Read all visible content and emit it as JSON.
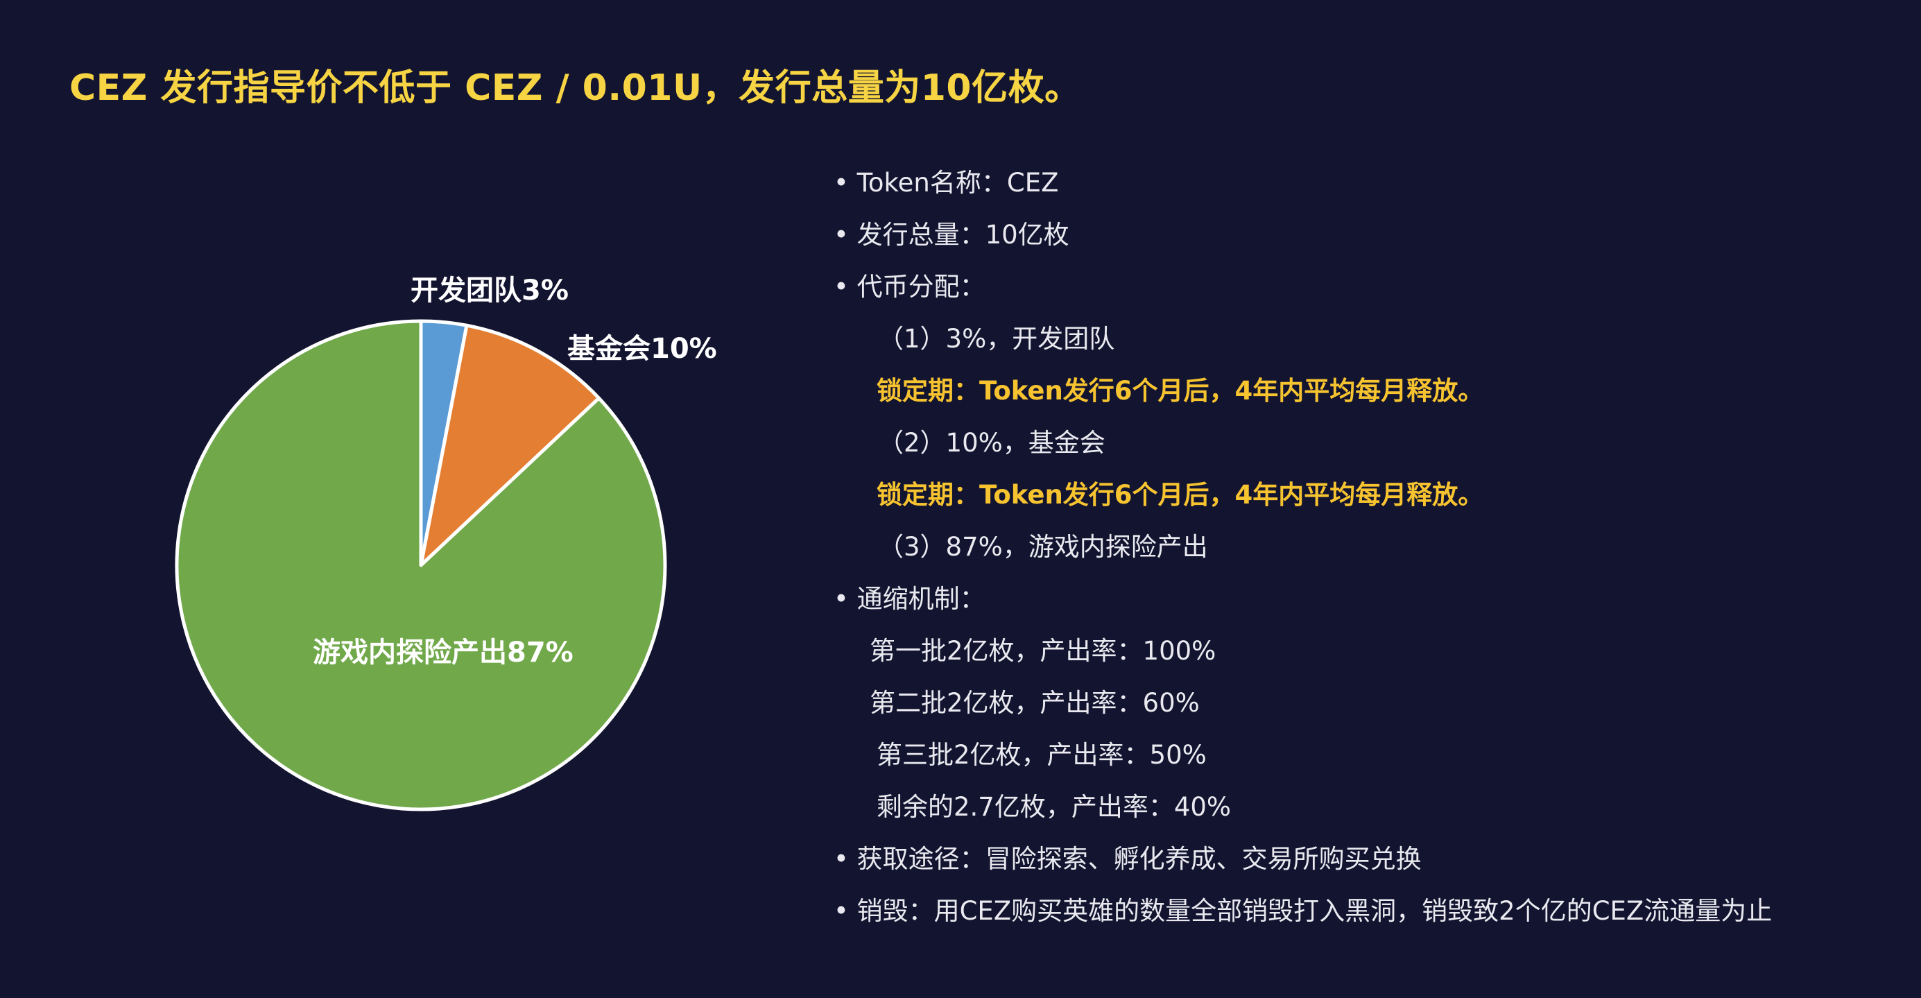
{
  "title": "CEZ 发行指导价不低于 CEZ / 0.01U，发行总量为10亿枚。",
  "colors": {
    "background": "#131430",
    "title": "#f7d443",
    "highlight": "#f7c430",
    "slice_team": "#5b9bd5",
    "slice_foundation": "#e47e32",
    "slice_game": "#70a84a"
  },
  "chart_data": {
    "type": "pie",
    "slices": [
      {
        "label": "开发团队3%",
        "value": 3,
        "color": "#5b9bd5"
      },
      {
        "label": "基金会10%",
        "value": 10,
        "color": "#e47e32"
      },
      {
        "label": "游戏内探险产出87%",
        "value": 87,
        "color": "#70a84a"
      }
    ],
    "start_angle_deg": 0,
    "direction": "clockwise",
    "legend": "none"
  },
  "info": {
    "token_name": "Token名称：CEZ",
    "total_supply": "发行总量：10亿枚",
    "distribution_title": "代币分配：",
    "dist_1": "（1）3%，开发团队",
    "lock_1": "锁定期：Token发行6个月后，4年内平均每月释放。",
    "dist_2": "（2）10%，基金会",
    "lock_2": "锁定期：Token发行6个月后，4年内平均每月释放。",
    "dist_3": "（3）87%，游戏内探险产出",
    "deflation_title": "通缩机制：",
    "batch_1": "第一批2亿枚，产出率：100%",
    "batch_2": "第二批2亿枚，产出率：60%",
    "batch_3": "第三批2亿枚，产出率：50%",
    "batch_rest": "剩余的2.7亿枚，产出率：40%",
    "acquire": "获取途径：冒险探索、孵化养成、交易所购买兑换",
    "burn": "销毁：用CEZ购买英雄的数量全部销毁打入黑洞，销毁致2个亿的CEZ流通量为止"
  }
}
